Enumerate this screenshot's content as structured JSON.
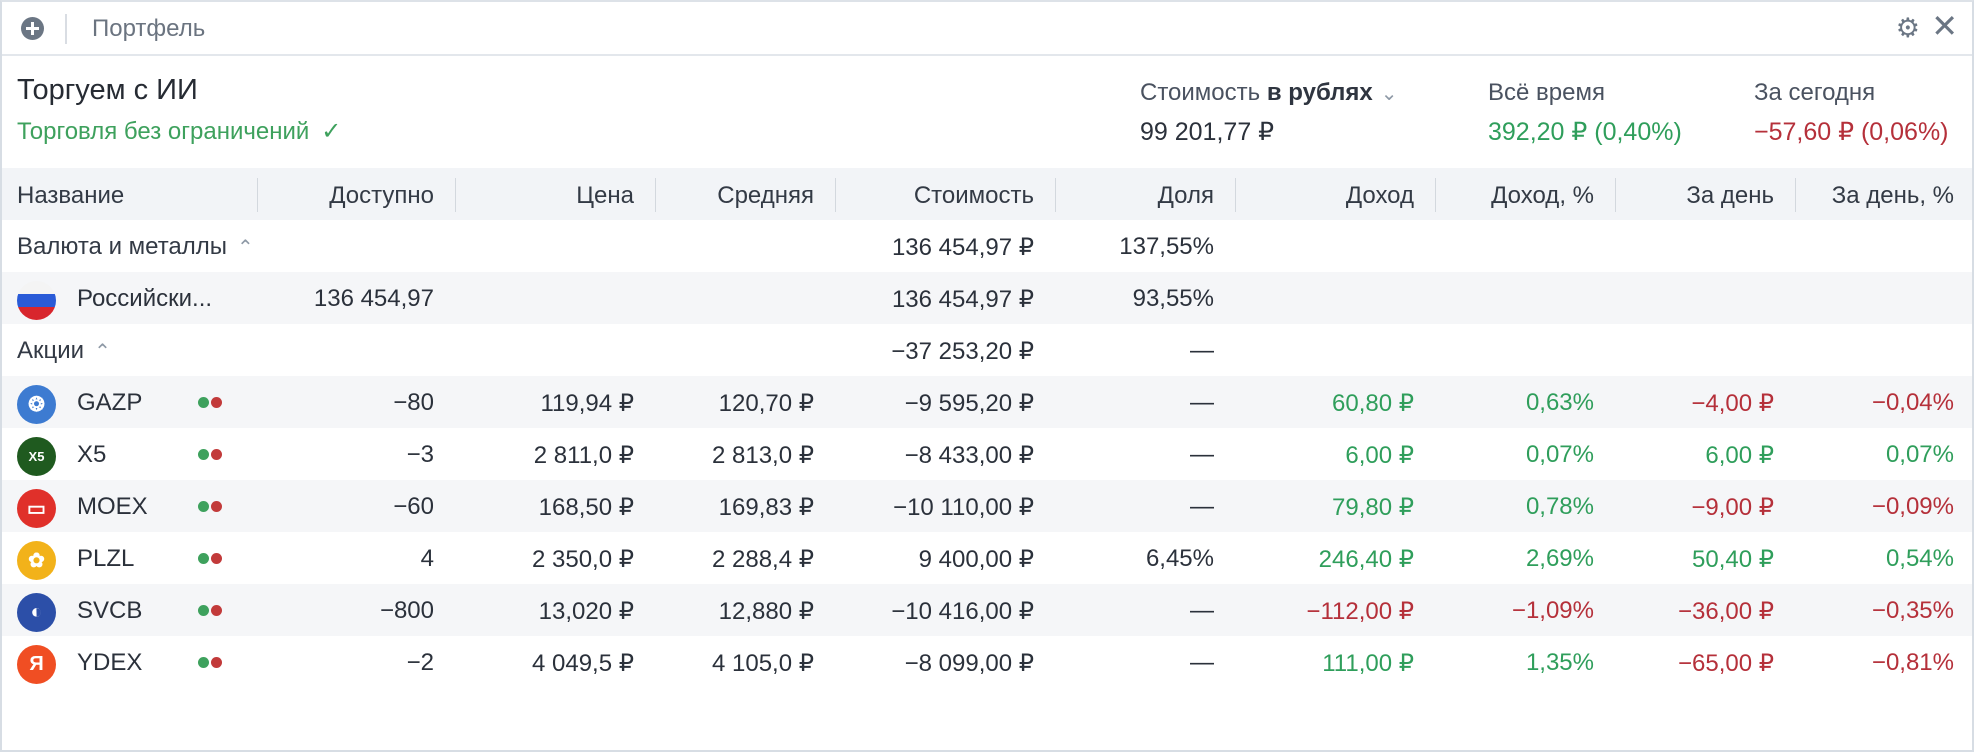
{
  "titlebar": {
    "title": "Портфель",
    "add_icon": "plus-circle-icon",
    "settings_icon": "gear-icon",
    "close_icon": "close-icon"
  },
  "header": {
    "portfolio_name": "Торгуем с ИИ",
    "status": "Торговля без ограничений",
    "value_label_prefix": "Стоимость",
    "value_label_currency": "в рублях",
    "value": "99 201,77 ₽",
    "alltime_label": "Всё время",
    "alltime_value": "392,20 ₽ (0,40%)",
    "today_label": "За сегодня",
    "today_value": "−57,60 ₽ (0,06%)"
  },
  "columns": [
    "Название",
    "Доступно",
    "Цена",
    "Средняя",
    "Стоимость",
    "Доля",
    "Доход",
    "Доход, %",
    "За день",
    "За день, %"
  ],
  "groups": {
    "currency": {
      "name": "Валюта и металлы",
      "value": "136 454,97 ₽",
      "share": "137,55%"
    },
    "stocks": {
      "name": "Акции",
      "value": "−37 253,20 ₽",
      "share": "—"
    }
  },
  "currency_rows": [
    {
      "name": "Российски...",
      "available": "136 454,97",
      "value": "136 454,97 ₽",
      "share": "93,55%"
    }
  ],
  "stock_rows": [
    {
      "ticker": "GAZP",
      "available": "−80",
      "price": "119,94 ₽",
      "avg": "120,70 ₽",
      "value": "−9 595,20 ₽",
      "share": "—",
      "income": "60,80 ₽",
      "income_pct": "0,63%",
      "day": "−4,00 ₽",
      "day_pct": "−0,04%",
      "logo_color": "#3d7bd1"
    },
    {
      "ticker": "X5",
      "available": "−3",
      "price": "2 811,0 ₽",
      "avg": "2 813,0 ₽",
      "value": "−8 433,00 ₽",
      "share": "—",
      "income": "6,00 ₽",
      "income_pct": "0,07%",
      "day": "6,00 ₽",
      "day_pct": "0,07%",
      "logo_color": "#1f5a1f"
    },
    {
      "ticker": "MOEX",
      "available": "−60",
      "price": "168,50 ₽",
      "avg": "169,83 ₽",
      "value": "−10 110,00 ₽",
      "share": "—",
      "income": "79,80 ₽",
      "income_pct": "0,78%",
      "day": "−9,00 ₽",
      "day_pct": "−0,09%",
      "logo_color": "#e0302a"
    },
    {
      "ticker": "PLZL",
      "available": "4",
      "price": "2 350,0 ₽",
      "avg": "2 288,4 ₽",
      "value": "9 400,00 ₽",
      "share": "6,45%",
      "income": "246,40 ₽",
      "income_pct": "2,69%",
      "day": "50,40 ₽",
      "day_pct": "0,54%",
      "logo_color": "#f2b21a"
    },
    {
      "ticker": "SVCB",
      "available": "−800",
      "price": "13,020 ₽",
      "avg": "12,880 ₽",
      "value": "−10 416,00 ₽",
      "share": "—",
      "income": "−112,00 ₽",
      "income_pct": "−1,09%",
      "day": "−36,00 ₽",
      "day_pct": "−0,35%",
      "logo_color": "#2c4fa8"
    },
    {
      "ticker": "YDEX",
      "available": "−2",
      "price": "4 049,5 ₽",
      "avg": "4 105,0 ₽",
      "value": "−8 099,00 ₽",
      "share": "—",
      "income": "111,00 ₽",
      "income_pct": "1,35%",
      "day": "−65,00 ₽",
      "day_pct": "−0,81%",
      "logo_color": "#f04e23"
    }
  ],
  "colors": {
    "positive": "#2f9e5b",
    "negative": "#b5303a"
  }
}
